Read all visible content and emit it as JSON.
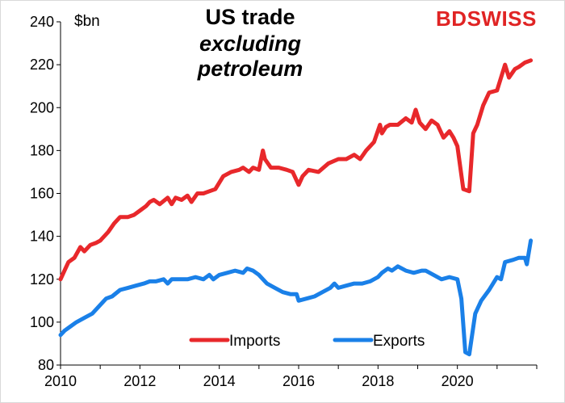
{
  "chart_data": {
    "type": "line",
    "title": "US trade",
    "subtitle": "excluding petroleum",
    "ylabel": "$bn",
    "ylim": [
      80,
      240
    ],
    "yticks": [
      80,
      100,
      120,
      140,
      160,
      180,
      200,
      220,
      240
    ],
    "xlim": [
      2010,
      2022
    ],
    "xticks": [
      2010,
      2012,
      2014,
      2016,
      2018,
      2020
    ],
    "grid": false,
    "legend_position": "bottom-center",
    "brand": "BDSWISS",
    "series": [
      {
        "name": "Imports",
        "color": "#e8282b",
        "x": [
          2010.0,
          2010.1,
          2010.2,
          2010.35,
          2010.5,
          2010.6,
          2010.75,
          2010.9,
          2011.0,
          2011.2,
          2011.35,
          2011.5,
          2011.7,
          2011.85,
          2012.0,
          2012.15,
          2012.25,
          2012.35,
          2012.5,
          2012.7,
          2012.8,
          2012.9,
          2013.05,
          2013.2,
          2013.3,
          2013.45,
          2013.6,
          2013.75,
          2013.9,
          2014.1,
          2014.3,
          2014.5,
          2014.6,
          2014.75,
          2014.85,
          2015.0,
          2015.1,
          2015.15,
          2015.3,
          2015.5,
          2015.7,
          2015.85,
          2016.0,
          2016.1,
          2016.25,
          2016.5,
          2016.75,
          2017.0,
          2017.2,
          2017.4,
          2017.55,
          2017.7,
          2017.9,
          2018.05,
          2018.1,
          2018.2,
          2018.3,
          2018.5,
          2018.7,
          2018.85,
          2018.95,
          2019.05,
          2019.2,
          2019.35,
          2019.5,
          2019.65,
          2019.8,
          2019.9,
          2020.0,
          2020.15,
          2020.3,
          2020.4,
          2020.5,
          2020.65,
          2020.8,
          2021.0,
          2021.2,
          2021.3,
          2021.45,
          2021.55,
          2021.7,
          2021.85
        ],
        "y": [
          120,
          124,
          128,
          130,
          135,
          133,
          136,
          137,
          138,
          142,
          146,
          149,
          149,
          150,
          152,
          154,
          156,
          157,
          155,
          158,
          155,
          158,
          157,
          159,
          156,
          160,
          160,
          161,
          162,
          168,
          170,
          171,
          172,
          170,
          172,
          171,
          180,
          176,
          172,
          172,
          171,
          170,
          164,
          168,
          171,
          170,
          174,
          176,
          176,
          178,
          176,
          180,
          184,
          192,
          188,
          191,
          192,
          192,
          195,
          193,
          199,
          193,
          190,
          194,
          192,
          186,
          189,
          186,
          182,
          162,
          161,
          188,
          192,
          201,
          207,
          208,
          220,
          214,
          218,
          219,
          221,
          222
        ]
      },
      {
        "name": "Exports",
        "color": "#1a80e8",
        "x": [
          2010.0,
          2010.1,
          2010.25,
          2010.4,
          2010.6,
          2010.8,
          2011.0,
          2011.15,
          2011.3,
          2011.5,
          2011.7,
          2011.9,
          2012.1,
          2012.25,
          2012.4,
          2012.6,
          2012.7,
          2012.8,
          2013.0,
          2013.2,
          2013.4,
          2013.6,
          2013.75,
          2013.85,
          2014.0,
          2014.2,
          2014.4,
          2014.6,
          2014.7,
          2014.85,
          2015.0,
          2015.2,
          2015.4,
          2015.6,
          2015.8,
          2015.95,
          2016.0,
          2016.2,
          2016.4,
          2016.6,
          2016.8,
          2016.9,
          2017.0,
          2017.2,
          2017.4,
          2017.6,
          2017.8,
          2018.0,
          2018.1,
          2018.25,
          2018.35,
          2018.5,
          2018.7,
          2018.9,
          2019.1,
          2019.2,
          2019.4,
          2019.6,
          2019.8,
          2020.0,
          2020.1,
          2020.2,
          2020.3,
          2020.45,
          2020.6,
          2020.8,
          2021.0,
          2021.1,
          2021.2,
          2021.4,
          2021.55,
          2021.7,
          2021.75,
          2021.85
        ],
        "y": [
          94,
          96,
          98,
          100,
          102,
          104,
          108,
          111,
          112,
          115,
          116,
          117,
          118,
          119,
          119,
          120,
          118,
          120,
          120,
          120,
          121,
          120,
          122,
          120,
          122,
          123,
          124,
          123,
          125,
          124,
          122,
          118,
          116,
          114,
          113,
          113,
          110,
          111,
          112,
          114,
          116,
          118,
          116,
          117,
          118,
          118,
          119,
          121,
          123,
          125,
          124,
          126,
          124,
          123,
          124,
          124,
          122,
          120,
          121,
          120,
          111,
          86,
          85,
          104,
          110,
          115,
          121,
          120,
          128,
          129,
          130,
          130,
          127,
          138
        ]
      }
    ]
  }
}
